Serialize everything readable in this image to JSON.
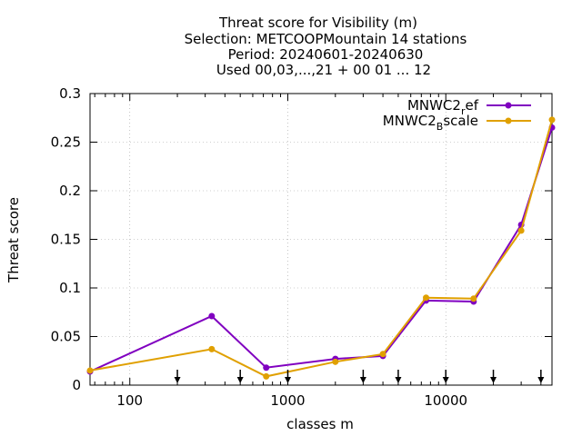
{
  "chart_data": {
    "type": "line",
    "title_lines": [
      "Threat score  for Visibility (m)",
      "Selection: METCOOPMountain      14 stations",
      "Period: 20240601-20240630",
      "Used 00,03,...,21 + 00 01 ... 12"
    ],
    "xlabel": "classes m",
    "ylabel": "Threat score",
    "x_scale": "log",
    "xlim": [
      56,
      47000
    ],
    "ylim": [
      0,
      0.3
    ],
    "x_ticks": [
      {
        "value": 100,
        "label": "100"
      },
      {
        "value": 1000,
        "label": "1000"
      },
      {
        "value": 10000,
        "label": "10000"
      }
    ],
    "y_ticks": [
      {
        "value": 0,
        "label": "0"
      },
      {
        "value": 0.05,
        "label": "0.05"
      },
      {
        "value": 0.1,
        "label": "0.1"
      },
      {
        "value": 0.15,
        "label": "0.15"
      },
      {
        "value": 0.2,
        "label": "0.2"
      },
      {
        "value": 0.25,
        "label": "0.25"
      },
      {
        "value": 0.3,
        "label": "0.3"
      }
    ],
    "grid": true,
    "legend_position": "top-right",
    "arrow_markers_x": [
      200,
      500,
      1000,
      3000,
      5000,
      10000,
      20000,
      40000
    ],
    "series": [
      {
        "name": "MNWC2_ref",
        "legend_main": "MNWC2",
        "legend_sub": "r",
        "legend_rest": "ef",
        "color": "#8000c0",
        "x": [
          56,
          330,
          730,
          2000,
          4000,
          7500,
          15000,
          30000,
          47000
        ],
        "values": [
          0.014,
          0.071,
          0.018,
          0.027,
          0.03,
          0.087,
          0.086,
          0.165,
          0.265
        ]
      },
      {
        "name": "MNWC2_Bscale",
        "legend_main": "MNWC2",
        "legend_sub": "B",
        "legend_rest": "scale",
        "color": "#e0a000",
        "x": [
          56,
          330,
          730,
          2000,
          4000,
          7500,
          15000,
          30000,
          47000
        ],
        "values": [
          0.015,
          0.037,
          0.009,
          0.024,
          0.032,
          0.09,
          0.089,
          0.159,
          0.273
        ]
      }
    ]
  }
}
